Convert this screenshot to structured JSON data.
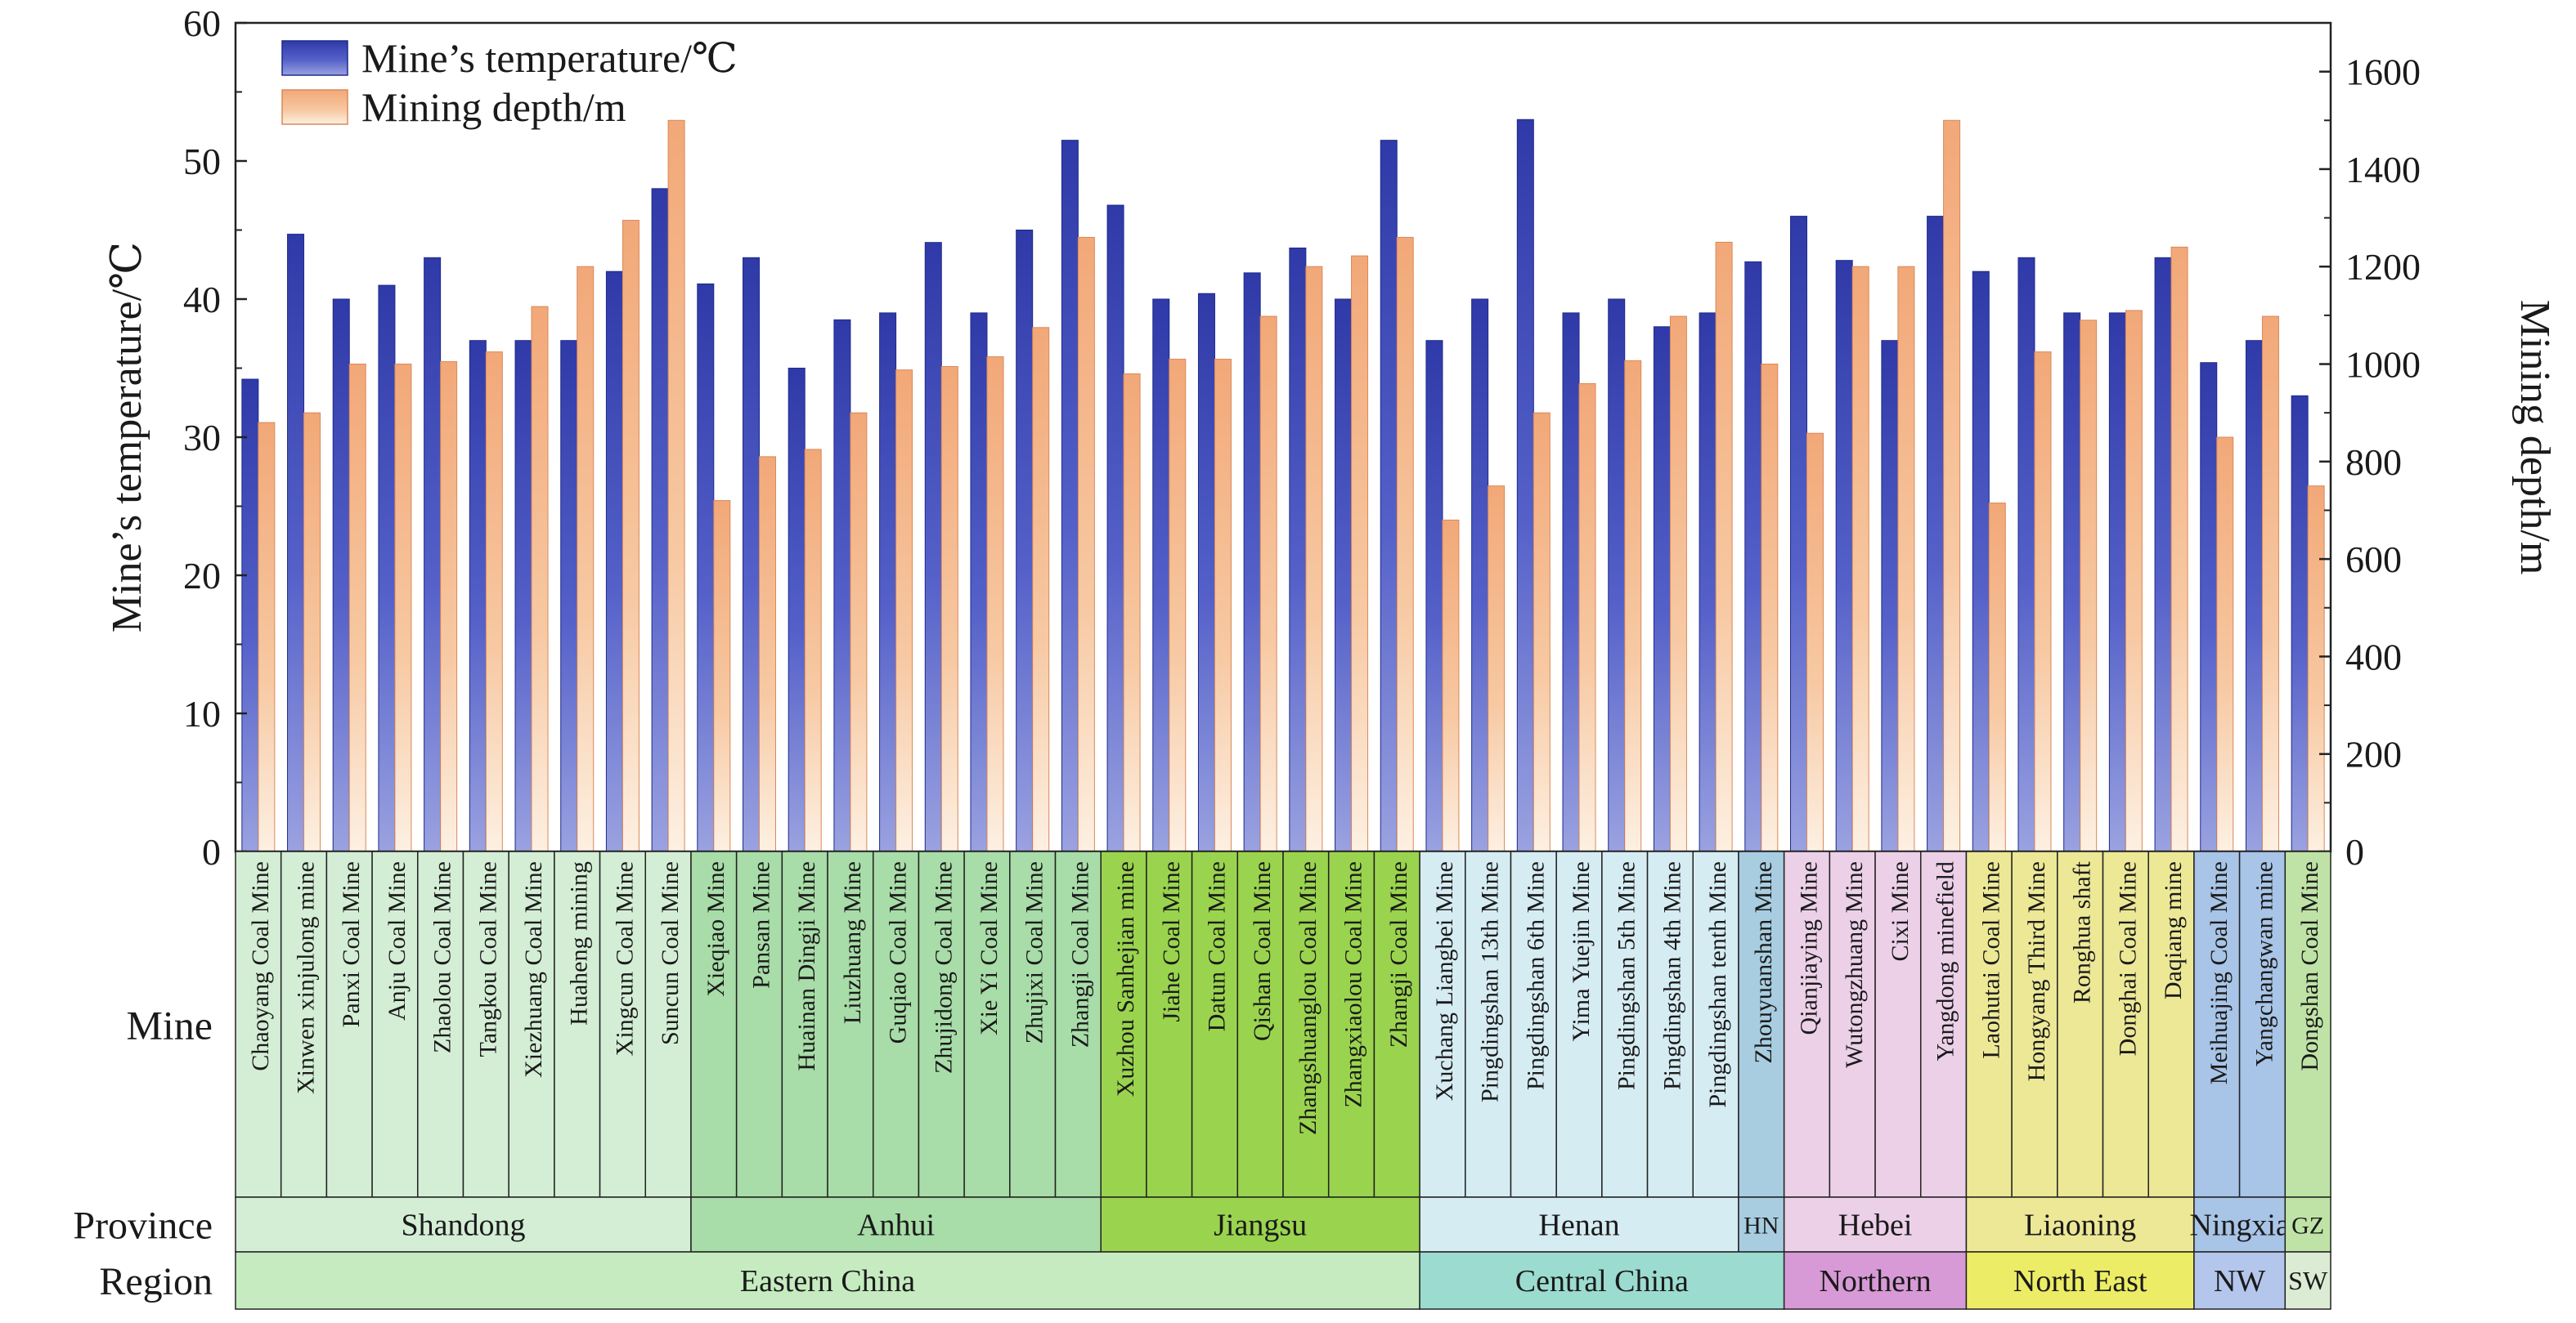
{
  "chart_data": {
    "type": "bar",
    "title": "",
    "ylabel_left": "Mine’s temperature/℃",
    "ylabel_right": "Mining depth/m",
    "ylim_left": [
      0,
      60
    ],
    "ylim_right": [
      0,
      1700
    ],
    "yticks_left": [
      "0",
      "10",
      "20",
      "30",
      "40",
      "50",
      "60"
    ],
    "yticks_right": [
      "0",
      "200",
      "400",
      "600",
      "800",
      "1000",
      "1200",
      "1400",
      "1600"
    ],
    "legend": [
      "Mine’s temperature/℃",
      "Mining depth/m"
    ],
    "legend_position": "top-left",
    "row_labels": {
      "mine": "Mine",
      "province": "Province",
      "region": "Region"
    },
    "categories": [
      "Chaoyang Coal Mine",
      "Xinwen xinjulong mine",
      "Panxi Coal Mine",
      "Anju Coal Mine",
      "Zhaolou Coal Mine",
      "Tangkou Coal Mine",
      "Xiezhuang Coal Mine",
      "Huaheng mining",
      "Xingcun Coal Mine",
      "Suncun Coal Mine",
      "Xieqiao Mine",
      "Pansan Mine",
      "Huainan Dingji Mine",
      "Liuzhuang Mine",
      "Guqiao Coal Mine",
      "Zhujidong Coal Mine",
      "Xie Yi Coal Mine",
      "Zhujixi Coal Mine",
      "Zhangji Coal Mine",
      "Xuzhou Sanhejian mine",
      "Jiahe Coal Mine",
      "Datun Coal Mine",
      "Qishan Coal Mine",
      "Zhangshuanglou Coal Mine",
      "Zhangxiaolou Coal Mine",
      "Zhangji Coal Mine",
      "Xuchang Liangbei Mine",
      "Pingdingshan 13th Mine",
      "Pingdingshan 6th Mine",
      "Yima Yuejin Mine",
      "Pingdingshan 5th Mine",
      "Pingdingshan 4th Mine",
      "Pingdingshan tenth Mine",
      "Zhouyuanshan Mine",
      "Qianjiaying Mine",
      "Wutongzhuang Mine",
      "Cixi Mine",
      "Yangdong minefield",
      "Laohutai Coal Mine",
      "Hongyang Third Mine",
      "Ronghua shaft",
      "Donghai Coal Mine",
      "Daqiang mine",
      "Meihuajing Coal Mine",
      "Yangchangwan mine",
      "Dongshan Coal Mine"
    ],
    "series": [
      {
        "name": "Mine’s temperature/℃",
        "axis": "left",
        "color": "#3d47b0",
        "values": [
          34.2,
          44.7,
          40,
          41,
          43,
          37,
          37,
          37,
          42,
          48,
          41.1,
          43,
          35,
          38.5,
          39,
          44.1,
          39,
          45,
          51.5,
          46.8,
          40,
          40.4,
          41.9,
          43.7,
          40,
          51.5,
          37,
          40,
          53,
          39,
          40,
          38,
          39,
          42.7,
          46,
          42.8,
          37,
          46,
          42,
          43,
          39,
          39,
          43,
          35.4,
          37,
          33
        ]
      },
      {
        "name": "Mining depth/m",
        "axis": "right",
        "color": "#f4b183",
        "values": [
          880,
          900,
          1000,
          1000,
          1005,
          1025,
          1118,
          1200,
          1295,
          1500,
          720,
          810,
          825,
          900,
          988,
          995,
          1015,
          1075,
          1260,
          980,
          1010,
          1010,
          1098,
          1200,
          1222,
          1260,
          680,
          750,
          900,
          960,
          1007,
          1098,
          1250,
          1000,
          858,
          1200,
          1200,
          1500,
          715,
          1025,
          1090,
          1110,
          1240,
          850,
          1098,
          750
        ]
      }
    ],
    "provinces": [
      {
        "name": "Shandong",
        "count": 10,
        "color": "#d4eed6"
      },
      {
        "name": "Anhui",
        "count": 9,
        "color": "#a8dca8"
      },
      {
        "name": "Jiangsu",
        "count": 7,
        "color": "#9ad44e"
      },
      {
        "name": "Henan",
        "count": 7,
        "color": "#d6ecf3"
      },
      {
        "name": "HN",
        "count": 1,
        "color": "#a8cde0"
      },
      {
        "name": "Hebei",
        "count": 4,
        "color": "#ecd0e8"
      },
      {
        "name": "Liaoning",
        "count": 5,
        "color": "#ece896"
      },
      {
        "name": "Ningxia",
        "count": 2,
        "color": "#a8c4e6"
      },
      {
        "name": "GZ",
        "count": 1,
        "color": "#bfe3a6"
      }
    ],
    "regions": [
      {
        "name": "Eastern China",
        "count": 26,
        "color": "#c6ebc0"
      },
      {
        "name": "Central China",
        "count": 8,
        "color": "#9cdcd0"
      },
      {
        "name": "Northern",
        "count": 4,
        "color": "#d79ad6"
      },
      {
        "name": "North East",
        "count": 5,
        "color": "#ecec66"
      },
      {
        "name": "NW",
        "count": 2,
        "color": "#b4c6ec"
      },
      {
        "name": "SW",
        "count": 1,
        "color": "#dcecd4"
      }
    ]
  }
}
